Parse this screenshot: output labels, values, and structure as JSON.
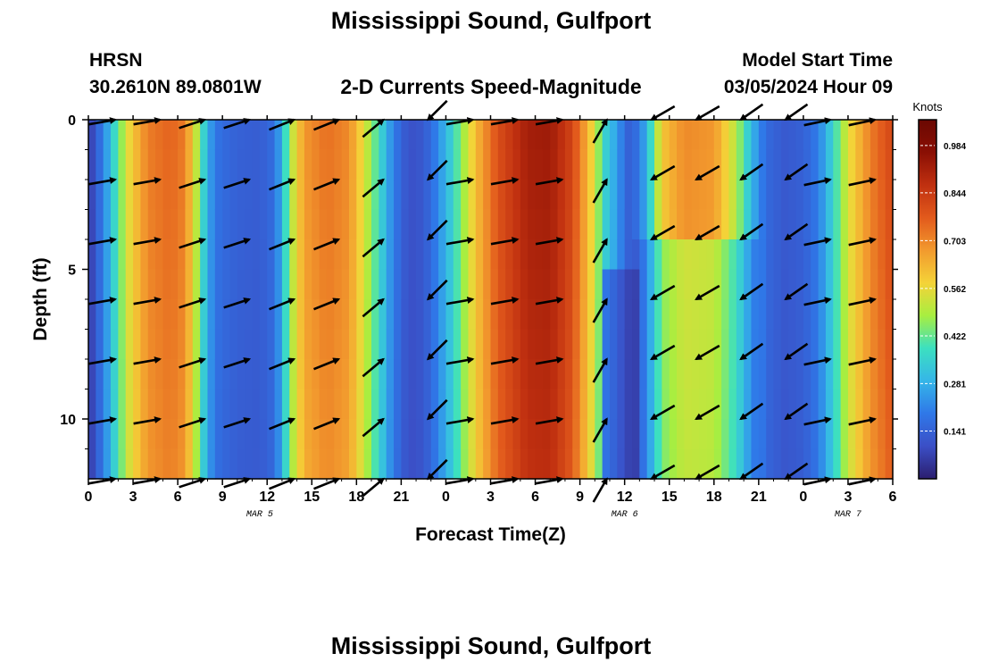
{
  "header": {
    "title": "Mississippi Sound, Gulfport",
    "station_code": "HRSN",
    "station_coords": "30.2610N  89.0801W",
    "subtitle": "2-D Currents Speed-Magnitude",
    "model_start_label": "Model Start Time",
    "model_start_value": "03/05/2024 Hour 09"
  },
  "footer": {
    "title": "Mississippi Sound, Gulfport"
  },
  "colors": {
    "stops": [
      "#2b1e6e",
      "#3b4fc6",
      "#2f78e8",
      "#35b6e8",
      "#3ce0c0",
      "#a8ee40",
      "#f4d338",
      "#f29a2e",
      "#e25a1c",
      "#c03010",
      "#8a0f04",
      "#6a0802"
    ]
  },
  "chart_data": {
    "type": "heatmap",
    "title": "2-D Currents Speed-Magnitude",
    "xlabel": "Forecast Time(Z)",
    "ylabel": "Depth (ft)",
    "x_range_hours": [
      0,
      54
    ],
    "x_ticks": [
      {
        "hour": 0,
        "label": "0"
      },
      {
        "hour": 3,
        "label": "3"
      },
      {
        "hour": 6,
        "label": "6"
      },
      {
        "hour": 9,
        "label": "9"
      },
      {
        "hour": 12,
        "label": "12"
      },
      {
        "hour": 15,
        "label": "15"
      },
      {
        "hour": 18,
        "label": "18"
      },
      {
        "hour": 21,
        "label": "21"
      },
      {
        "hour": 24,
        "label": "0"
      },
      {
        "hour": 27,
        "label": "3"
      },
      {
        "hour": 30,
        "label": "6"
      },
      {
        "hour": 33,
        "label": "9"
      },
      {
        "hour": 36,
        "label": "12"
      },
      {
        "hour": 39,
        "label": "15"
      },
      {
        "hour": 42,
        "label": "18"
      },
      {
        "hour": 45,
        "label": "21"
      },
      {
        "hour": 48,
        "label": "0"
      },
      {
        "hour": 51,
        "label": "3"
      },
      {
        "hour": 54,
        "label": "6"
      }
    ],
    "date_labels": [
      {
        "hour": 11.5,
        "label": "MAR 5"
      },
      {
        "hour": 36,
        "label": "MAR 6"
      },
      {
        "hour": 51,
        "label": "MAR 7"
      }
    ],
    "y_range_ft": [
      0,
      12
    ],
    "y_ticks": [
      {
        "depth": 0,
        "label": "0"
      },
      {
        "depth": 5,
        "label": "5"
      },
      {
        "depth": 10,
        "label": "10"
      }
    ],
    "colorbar": {
      "unit": "Knots",
      "min": 0.0,
      "max": 1.06,
      "ticks": [
        0.141,
        0.281,
        0.422,
        0.562,
        0.703,
        0.844,
        0.984
      ]
    },
    "speed_profile": [
      {
        "hour": 0,
        "speed": 0.05
      },
      {
        "hour": 0.5,
        "speed": 0.12
      },
      {
        "hour": 1.2,
        "speed": 0.25
      },
      {
        "hour": 2.0,
        "speed": 0.42
      },
      {
        "hour": 2.8,
        "speed": 0.58
      },
      {
        "hour": 4.0,
        "speed": 0.72
      },
      {
        "hour": 5.5,
        "speed": 0.76
      },
      {
        "hour": 6.5,
        "speed": 0.72
      },
      {
        "hour": 7.3,
        "speed": 0.5
      },
      {
        "hour": 8.0,
        "speed": 0.27
      },
      {
        "hour": 8.8,
        "speed": 0.17
      },
      {
        "hour": 10.0,
        "speed": 0.14
      },
      {
        "hour": 11.5,
        "speed": 0.13
      },
      {
        "hour": 12.5,
        "speed": 0.17
      },
      {
        "hour": 13.0,
        "speed": 0.3
      },
      {
        "hour": 13.6,
        "speed": 0.5
      },
      {
        "hour": 14.5,
        "speed": 0.68
      },
      {
        "hour": 16.0,
        "speed": 0.74
      },
      {
        "hour": 17.5,
        "speed": 0.7
      },
      {
        "hour": 18.5,
        "speed": 0.55
      },
      {
        "hour": 19.5,
        "speed": 0.38
      },
      {
        "hour": 20.5,
        "speed": 0.2
      },
      {
        "hour": 21.5,
        "speed": 0.1
      },
      {
        "hour": 22.5,
        "speed": 0.12
      },
      {
        "hour": 23.3,
        "speed": 0.2
      },
      {
        "hour": 24.2,
        "speed": 0.32
      },
      {
        "hour": 25.0,
        "speed": 0.45
      },
      {
        "hour": 26.0,
        "speed": 0.62
      },
      {
        "hour": 27.5,
        "speed": 0.8
      },
      {
        "hour": 29.5,
        "speed": 0.92
      },
      {
        "hour": 31.0,
        "speed": 0.93
      },
      {
        "hour": 32.5,
        "speed": 0.82
      },
      {
        "hour": 33.8,
        "speed": 0.58
      },
      {
        "hour": 34.7,
        "speed": 0.35
      },
      {
        "hour": 35.5,
        "speed": 0.25
      },
      {
        "hour": 36.2,
        "speed": 0.14
      },
      {
        "hour": 37.0,
        "speed": 0.18
      },
      {
        "hour": 37.8,
        "speed": 0.38
      },
      {
        "hour": 38.5,
        "speed": 0.6
      },
      {
        "hour": 40.0,
        "speed": 0.7
      },
      {
        "hour": 42.0,
        "speed": 0.68
      },
      {
        "hour": 43.5,
        "speed": 0.5
      },
      {
        "hour": 44.5,
        "speed": 0.3
      },
      {
        "hour": 45.5,
        "speed": 0.16
      },
      {
        "hour": 46.8,
        "speed": 0.12
      },
      {
        "hour": 48.0,
        "speed": 0.14
      },
      {
        "hour": 49.0,
        "speed": 0.2
      },
      {
        "hour": 50.0,
        "speed": 0.36
      },
      {
        "hour": 51.0,
        "speed": 0.55
      },
      {
        "hour": 52.5,
        "speed": 0.72
      },
      {
        "hour": 54.0,
        "speed": 0.82
      }
    ],
    "vector_depths_ft": [
      0,
      2,
      4,
      6,
      8,
      10,
      12
    ],
    "vector_hours": [
      3,
      6,
      9,
      12,
      15,
      18,
      21,
      24,
      27,
      30,
      33,
      36,
      39,
      42,
      45,
      48,
      51,
      54
    ],
    "vector_directions_deg": [
      {
        "from_hour": 0,
        "to_hour": 8,
        "deg": 10
      },
      {
        "from_hour": 8,
        "to_hour": 12,
        "deg": 18
      },
      {
        "from_hour": 12,
        "to_hour": 18,
        "deg": 22
      },
      {
        "from_hour": 18,
        "to_hour": 21,
        "deg": 40
      },
      {
        "from_hour": 21,
        "to_hour": 24,
        "deg": 225
      },
      {
        "from_hour": 24,
        "to_hour": 34,
        "deg": 10
      },
      {
        "from_hour": 34,
        "to_hour": 37,
        "deg": 60
      },
      {
        "from_hour": 37,
        "to_hour": 44,
        "deg": 210
      },
      {
        "from_hour": 44,
        "to_hour": 48,
        "deg": 215
      },
      {
        "from_hour": 48,
        "to_hour": 54,
        "deg": 12
      }
    ]
  }
}
